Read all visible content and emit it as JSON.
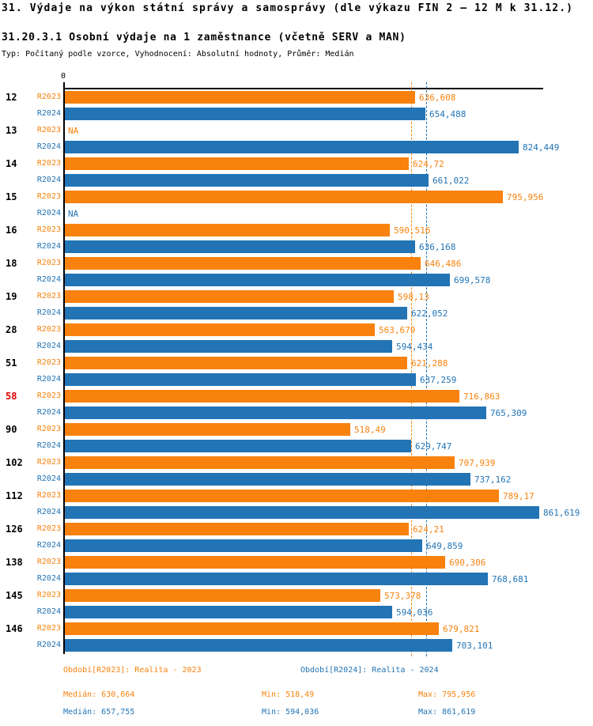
{
  "header": {
    "title": "31. Výdaje na výkon státní správy a samosprávy (dle výkazu FIN 2 – 12 M k 31.12.)",
    "subtitle": "31.20.3.1 Osobní výdaje na 1 zaměstnance (včetně SERV a MAN)",
    "meta_line": "Typ: Počítaný podle vzorce, Vyhodnocení: Absolutní hodnoty, Průměr: Medián"
  },
  "colors": {
    "r2023_orange": "#F8820D",
    "r2024_blue": "#2274B5",
    "highlight_red": "#E00000",
    "axis_black": "#000000"
  },
  "chart_data": {
    "type": "bar",
    "orientation": "horizontal",
    "x_origin_label": "0",
    "xlim": [
      0,
      870
    ],
    "x_tick_labels": [
      "0"
    ],
    "grid": false,
    "legend_position": "bottom",
    "categories": [
      "12",
      "13",
      "14",
      "15",
      "16",
      "18",
      "19",
      "28",
      "51",
      "58",
      "90",
      "102",
      "112",
      "126",
      "138",
      "145",
      "146"
    ],
    "highlighted_category": "58",
    "series": [
      {
        "name": "R2023",
        "values": [
          636.608,
          null,
          624.72,
          795.956,
          590.516,
          646.486,
          598.13,
          563.679,
          621.288,
          716.863,
          518.49,
          707.939,
          789.17,
          624.21,
          690.306,
          573.378,
          679.821
        ],
        "value_labels": [
          "636,608",
          "NA",
          "624,72",
          "795,956",
          "590,516",
          "646,486",
          "598,13",
          "563,679",
          "621,288",
          "716,863",
          "518,49",
          "707,939",
          "789,17",
          "624,21",
          "690,306",
          "573,378",
          "679,821"
        ],
        "median": 630.664
      },
      {
        "name": "R2024",
        "values": [
          654.488,
          824.449,
          661.022,
          null,
          636.168,
          699.578,
          622.052,
          594.434,
          637.259,
          765.309,
          629.747,
          737.162,
          861.619,
          649.859,
          768.681,
          594.036,
          703.101
        ],
        "value_labels": [
          "654,488",
          "824,449",
          "661,022",
          "NA",
          "636,168",
          "699,578",
          "622,052",
          "594,434",
          "637,259",
          "765,309",
          "629,747",
          "737,162",
          "861,619",
          "649,859",
          "768,681",
          "594,036",
          "703,101"
        ],
        "median": 657.755
      }
    ],
    "legend": {
      "r2023_period": "Období[R2023]: Realita - 2023",
      "r2024_period": "Období[R2024]: Realita - 2024"
    },
    "stats": {
      "r2023": {
        "median": "Medián: 630,664",
        "min": "Min: 518,49",
        "max": "Max: 795,956"
      },
      "r2024": {
        "median": "Medián: 657,755",
        "min": "Min: 594,036",
        "max": "Max: 861,619"
      }
    }
  }
}
